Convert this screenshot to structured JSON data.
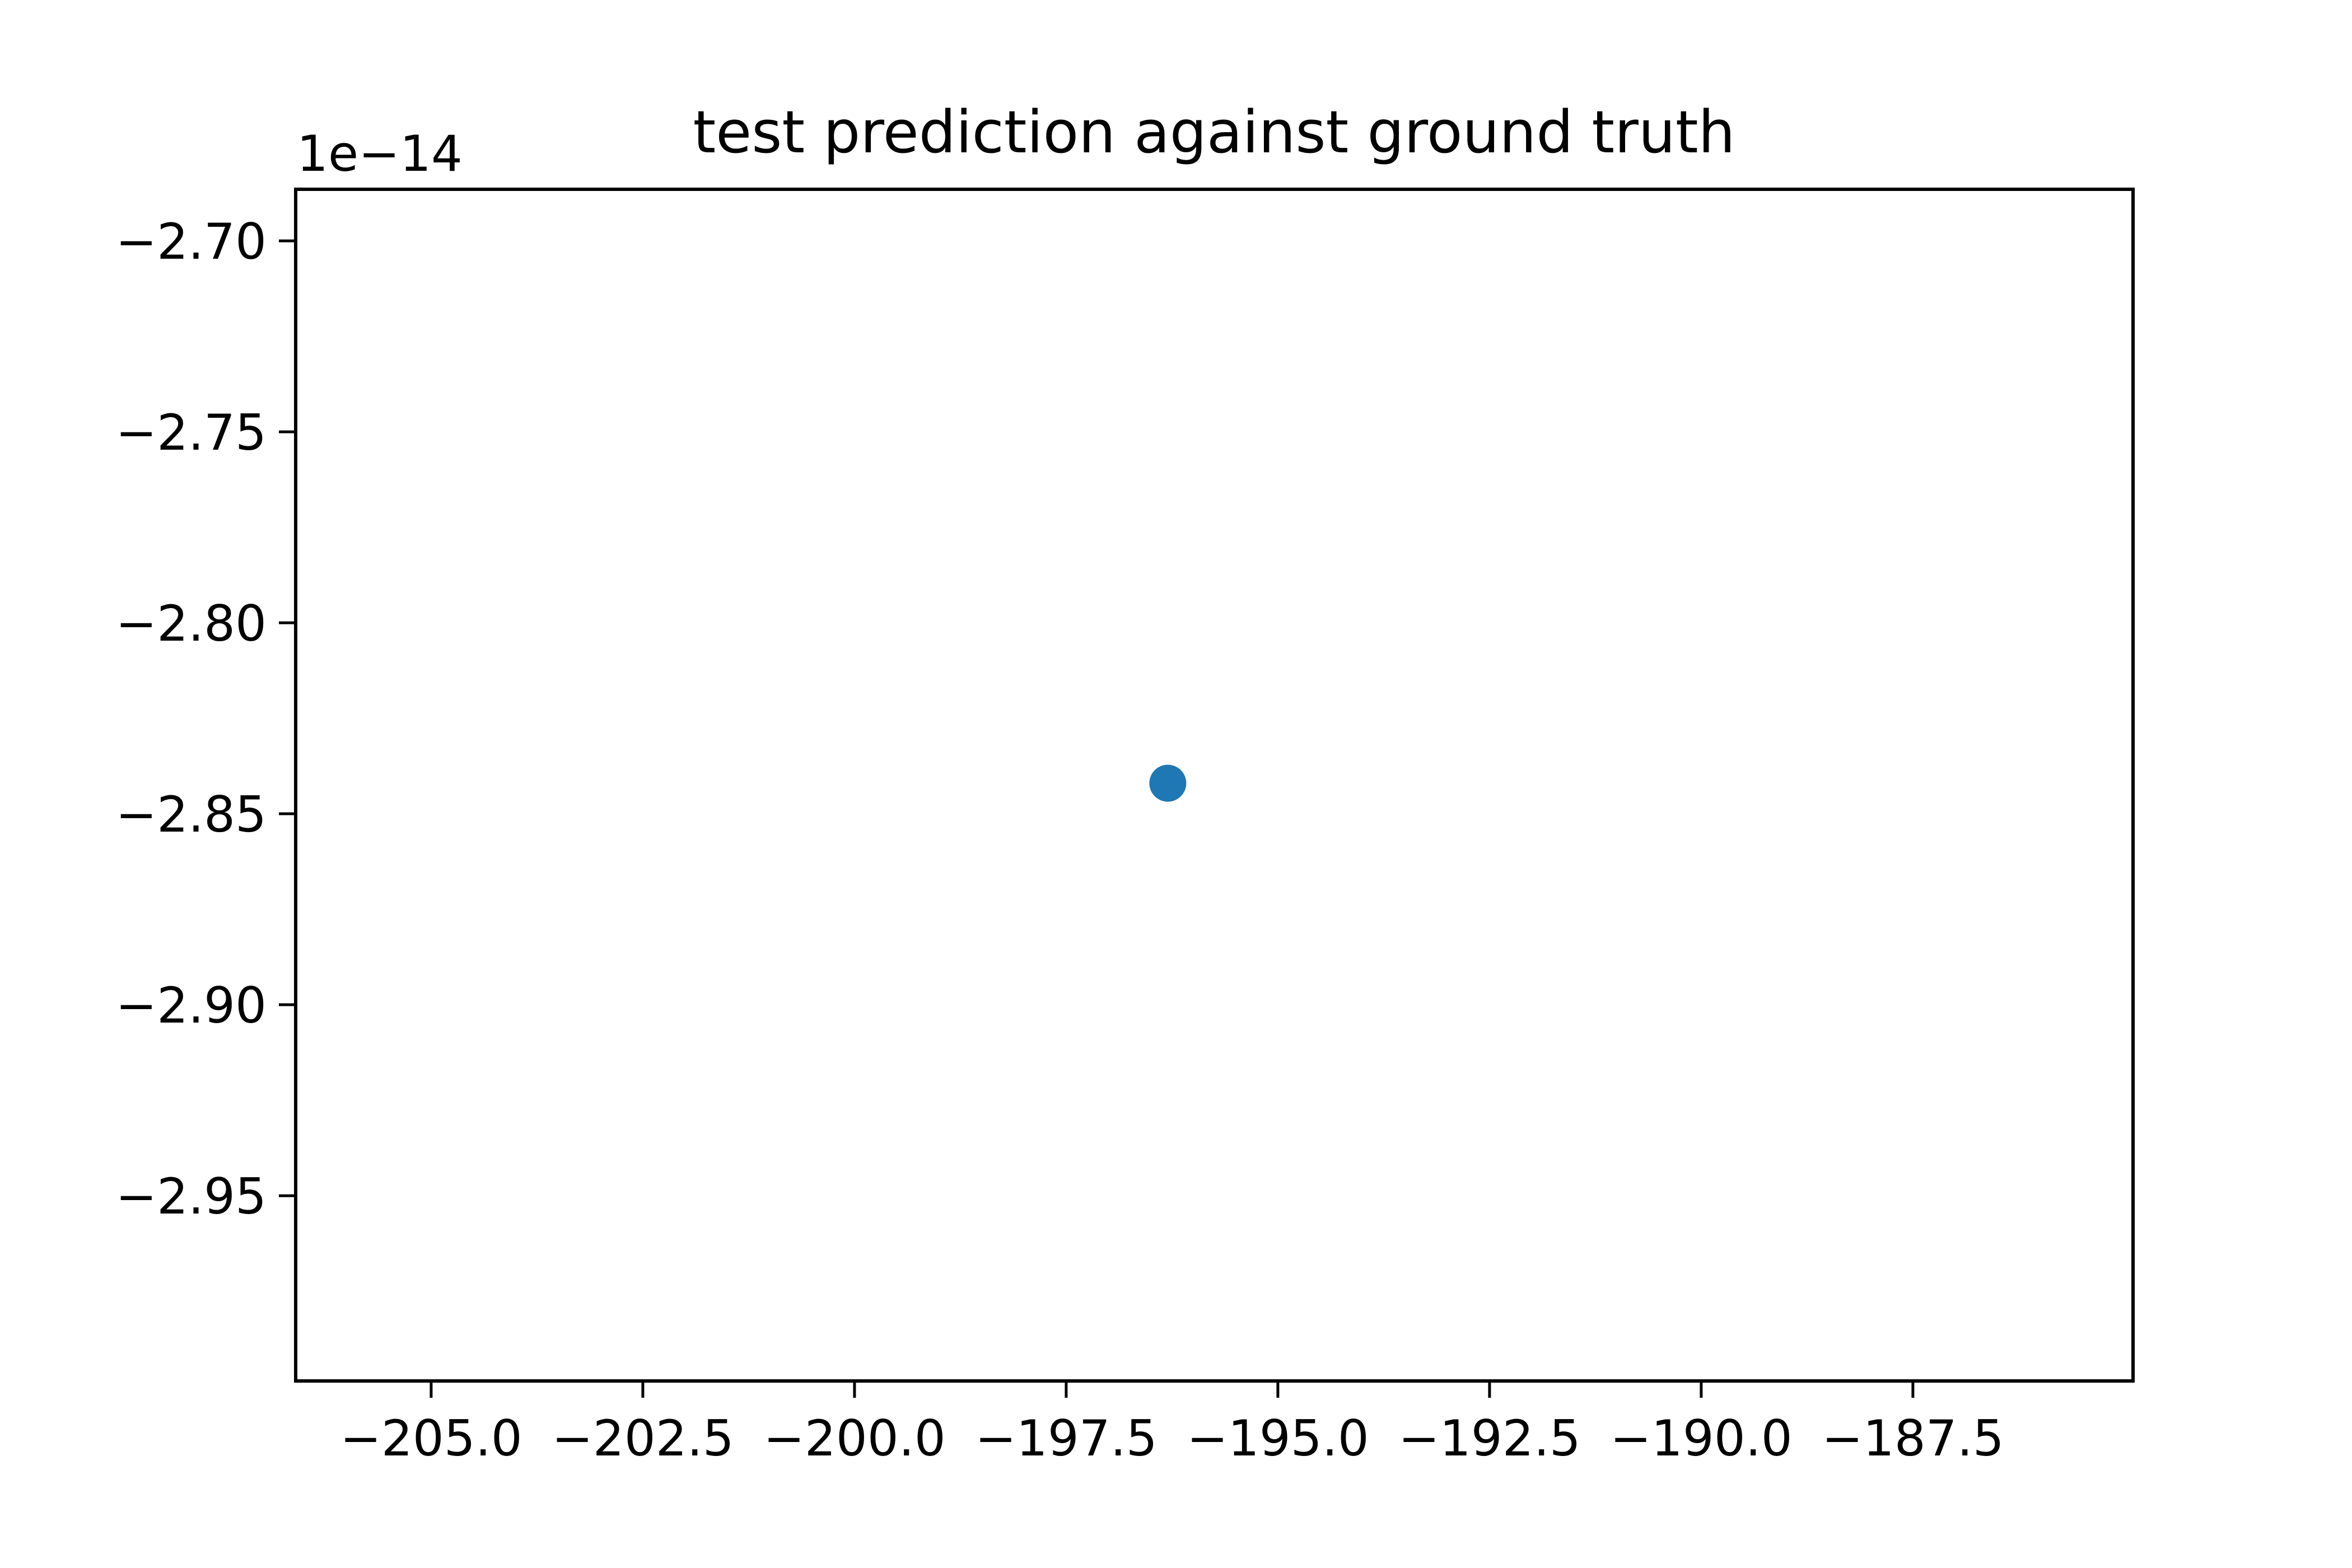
{
  "chart_data": {
    "type": "scatter",
    "title": "test prediction against ground truth",
    "xlabel": "",
    "ylabel": "",
    "y_offset_text": "1e−14",
    "xlim": [
      -206.6,
      -184.9
    ],
    "ylim": [
      -2.9985,
      -2.6865
    ],
    "x_ticks": [
      {
        "value": -205.0,
        "label": "−205.0"
      },
      {
        "value": -202.5,
        "label": "−202.5"
      },
      {
        "value": -200.0,
        "label": "−200.0"
      },
      {
        "value": -197.5,
        "label": "−197.5"
      },
      {
        "value": -195.0,
        "label": "−195.0"
      },
      {
        "value": -192.5,
        "label": "−192.5"
      },
      {
        "value": -190.0,
        "label": "−190.0"
      },
      {
        "value": -187.5,
        "label": "−187.5"
      }
    ],
    "y_ticks": [
      {
        "value": -2.7,
        "label": "−2.70"
      },
      {
        "value": -2.75,
        "label": "−2.75"
      },
      {
        "value": -2.8,
        "label": "−2.80"
      },
      {
        "value": -2.85,
        "label": "−2.85"
      },
      {
        "value": -2.9,
        "label": "−2.90"
      },
      {
        "value": -2.95,
        "label": "−2.95"
      }
    ],
    "series": [
      {
        "points": [
          {
            "x": -196.3,
            "y": -2.842
          }
        ]
      }
    ],
    "grid": false,
    "colors": {
      "point": "#1f77b4",
      "axes": "#000000",
      "background": "#ffffff"
    }
  }
}
